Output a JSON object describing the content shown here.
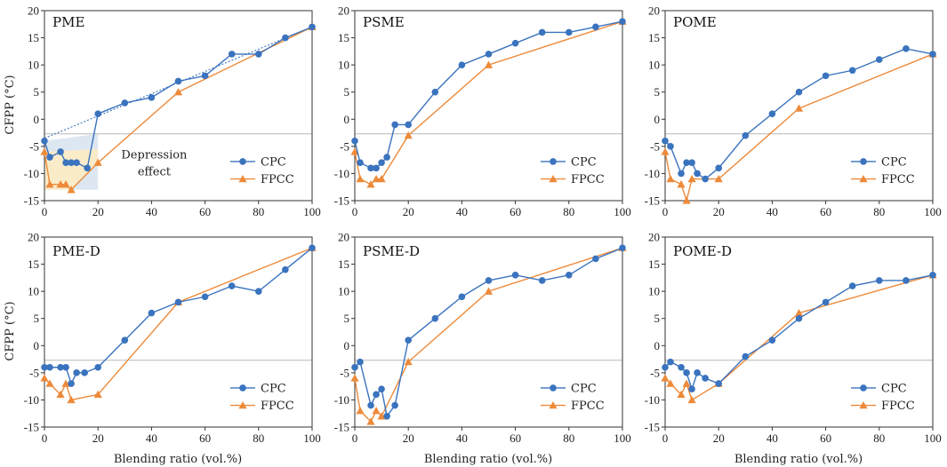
{
  "figure": {
    "x_label": "Blending ratio (vol.%)",
    "y_label": "CFPP (°C)",
    "annotation_line1": "Depression",
    "annotation_line2": "effect"
  },
  "colors": {
    "cpc": "#3a73be",
    "fpcc": "#ed8a3a",
    "threshold": "#b8b8b8",
    "shade_blue": "#d7e3ef",
    "shade_yellow": "#fdebc4"
  },
  "chart_data": [
    {
      "type": "line",
      "title": "PME",
      "xlim": [
        0,
        100
      ],
      "ylim": [
        -15,
        20
      ],
      "xticks": [
        0,
        20,
        40,
        60,
        80,
        100
      ],
      "yticks": [
        -15,
        -10,
        -5,
        0,
        5,
        10,
        15,
        20
      ],
      "threshold": -2.7,
      "title_size": "small",
      "legend": [
        "CPC",
        "FPCC"
      ],
      "trendline": [
        [
          0,
          -3.5
        ],
        [
          100,
          17
        ]
      ],
      "annotation": true,
      "series": [
        {
          "name": "CPC",
          "marker": "circle",
          "x": [
            0,
            2,
            6,
            8,
            10,
            12,
            16,
            20,
            30,
            40,
            50,
            60,
            70,
            80,
            90,
            100
          ],
          "y": [
            -4,
            -7,
            -6,
            -8,
            -8,
            -8,
            -9,
            1,
            3,
            4,
            7,
            8,
            12,
            12,
            15,
            17
          ]
        },
        {
          "name": "FPCC",
          "marker": "triangle",
          "x": [
            0,
            2,
            6,
            8,
            10,
            20,
            50,
            100
          ],
          "y": [
            -6,
            -12,
            -12,
            -12,
            -13,
            -8,
            5,
            17
          ]
        }
      ]
    },
    {
      "type": "line",
      "title": "PSME",
      "xlim": [
        0,
        100
      ],
      "ylim": [
        -15,
        20
      ],
      "xticks": [
        0,
        20,
        40,
        60,
        80,
        100
      ],
      "yticks": [
        -15,
        -10,
        -5,
        0,
        5,
        10,
        15,
        20
      ],
      "threshold": -2.7,
      "title_size": "small",
      "legend": [
        "CPC",
        "FPCC"
      ],
      "series": [
        {
          "name": "CPC",
          "marker": "circle",
          "x": [
            0,
            2,
            6,
            8,
            10,
            12,
            15,
            20,
            30,
            40,
            50,
            60,
            70,
            80,
            90,
            100
          ],
          "y": [
            -4,
            -8,
            -9,
            -9,
            -8,
            -7,
            -1,
            -1,
            5,
            10,
            12,
            14,
            16,
            16,
            17,
            18
          ]
        },
        {
          "name": "FPCC",
          "marker": "triangle",
          "x": [
            0,
            2,
            6,
            8,
            10,
            20,
            50,
            100
          ],
          "y": [
            -6,
            -11,
            -12,
            -11,
            -11,
            -3,
            10,
            18
          ]
        }
      ]
    },
    {
      "type": "line",
      "title": "POME",
      "xlim": [
        0,
        100
      ],
      "ylim": [
        -15,
        20
      ],
      "xticks": [
        0,
        20,
        40,
        60,
        80,
        100
      ],
      "yticks": [
        -15,
        -10,
        -5,
        0,
        5,
        10,
        15,
        20
      ],
      "threshold": -2.7,
      "title_size": "small",
      "legend": [
        "CPC",
        "FPCC"
      ],
      "series": [
        {
          "name": "CPC",
          "marker": "circle",
          "x": [
            0,
            2,
            6,
            8,
            10,
            12,
            15,
            20,
            30,
            40,
            50,
            60,
            70,
            80,
            90,
            100
          ],
          "y": [
            -4,
            -5,
            -10,
            -8,
            -8,
            -10,
            -11,
            -9,
            -3,
            1,
            5,
            8,
            9,
            11,
            13,
            12
          ]
        },
        {
          "name": "FPCC",
          "marker": "triangle",
          "x": [
            0,
            2,
            6,
            8,
            10,
            20,
            50,
            100
          ],
          "y": [
            -6,
            -11,
            -12,
            -15,
            -11,
            -11,
            2,
            12
          ]
        }
      ]
    },
    {
      "type": "line",
      "title": "PME-D",
      "xlim": [
        0,
        100
      ],
      "ylim": [
        -15,
        20
      ],
      "xticks": [
        0,
        20,
        40,
        60,
        80,
        100
      ],
      "yticks": [
        -15,
        -10,
        -5,
        0,
        5,
        10,
        15,
        20
      ],
      "threshold": -2.7,
      "title_size": "large",
      "legend": [
        "CPC",
        "FPCC"
      ],
      "series": [
        {
          "name": "CPC",
          "marker": "circle",
          "x": [
            0,
            2,
            6,
            8,
            10,
            12,
            15,
            20,
            30,
            40,
            50,
            60,
            70,
            80,
            90,
            100
          ],
          "y": [
            -4,
            -4,
            -4,
            -4,
            -7,
            -5,
            -5,
            -4,
            1,
            6,
            8,
            9,
            11,
            10,
            14,
            18
          ]
        },
        {
          "name": "FPCC",
          "marker": "triangle",
          "x": [
            0,
            2,
            6,
            8,
            10,
            20,
            50,
            100
          ],
          "y": [
            -6,
            -7,
            -9,
            -7,
            -10,
            -9,
            8,
            18
          ]
        }
      ]
    },
    {
      "type": "line",
      "title": "PSME-D",
      "xlim": [
        0,
        100
      ],
      "ylim": [
        -15,
        20
      ],
      "xticks": [
        0,
        20,
        40,
        60,
        80,
        100
      ],
      "yticks": [
        -15,
        -10,
        -5,
        0,
        5,
        10,
        15,
        20
      ],
      "threshold": -2.7,
      "title_size": "large",
      "legend": [
        "CPC",
        "FPCC"
      ],
      "series": [
        {
          "name": "CPC",
          "marker": "circle",
          "x": [
            0,
            2,
            6,
            8,
            10,
            12,
            15,
            20,
            30,
            40,
            50,
            60,
            70,
            80,
            90,
            100
          ],
          "y": [
            -4,
            -3,
            -11,
            -9,
            -8,
            -13,
            -11,
            1,
            5,
            9,
            12,
            13,
            12,
            13,
            16,
            18
          ]
        },
        {
          "name": "FPCC",
          "marker": "triangle",
          "x": [
            0,
            2,
            6,
            8,
            10,
            20,
            50,
            100
          ],
          "y": [
            -6,
            -12,
            -14,
            -12,
            -13,
            -3,
            10,
            18
          ]
        }
      ]
    },
    {
      "type": "line",
      "title": "POME-D",
      "xlim": [
        0,
        100
      ],
      "ylim": [
        -15,
        20
      ],
      "xticks": [
        0,
        20,
        40,
        60,
        80,
        100
      ],
      "yticks": [
        -15,
        -10,
        -5,
        0,
        5,
        10,
        15,
        20
      ],
      "threshold": -2.7,
      "title_size": "large",
      "legend": [
        "CPC",
        "FPCC"
      ],
      "series": [
        {
          "name": "CPC",
          "marker": "circle",
          "x": [
            0,
            2,
            6,
            8,
            10,
            12,
            15,
            20,
            30,
            40,
            50,
            60,
            70,
            80,
            90,
            100
          ],
          "y": [
            -4,
            -3,
            -4,
            -5,
            -8,
            -5,
            -6,
            -7,
            -2,
            1,
            5,
            8,
            11,
            12,
            12,
            13
          ]
        },
        {
          "name": "FPCC",
          "marker": "triangle",
          "x": [
            0,
            2,
            6,
            8,
            10,
            20,
            50,
            100
          ],
          "y": [
            -6,
            -7,
            -9,
            -7,
            -10,
            -7,
            6,
            13
          ]
        }
      ]
    }
  ]
}
